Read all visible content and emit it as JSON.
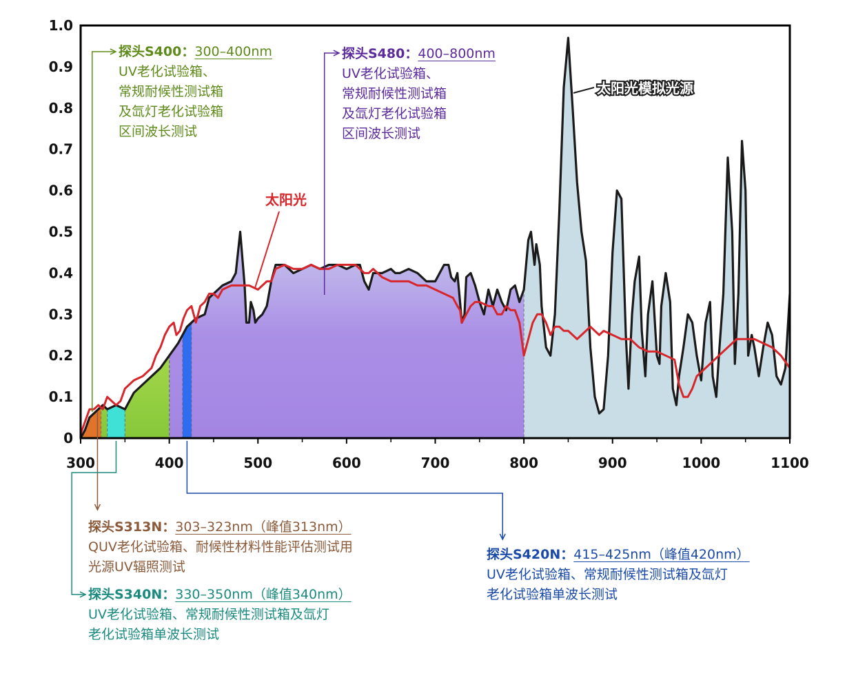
{
  "chart_data": {
    "type": "area",
    "x_range": [
      300,
      1100
    ],
    "y_range": [
      0,
      1.0
    ],
    "x_ticks": [
      "300",
      "400",
      "500",
      "600",
      "700",
      "800",
      "900",
      "1000",
      "1100"
    ],
    "y_ticks": [
      "0",
      "0.1",
      "0.2",
      "0.3",
      "0.4",
      "0.5",
      "0.6",
      "0.7",
      "0.8",
      "0.9",
      "1.0"
    ],
    "series": [
      {
        "name": "太阳光模拟光源",
        "color": "#1a1a1a",
        "fill": "#c9dde6",
        "points": [
          [
            300,
            0
          ],
          [
            305,
            0.02
          ],
          [
            310,
            0.05
          ],
          [
            315,
            0.06
          ],
          [
            320,
            0.07
          ],
          [
            325,
            0.08
          ],
          [
            330,
            0.07
          ],
          [
            340,
            0.08
          ],
          [
            350,
            0.07
          ],
          [
            360,
            0.11
          ],
          [
            370,
            0.13
          ],
          [
            380,
            0.15
          ],
          [
            390,
            0.17
          ],
          [
            400,
            0.2
          ],
          [
            410,
            0.23
          ],
          [
            420,
            0.27
          ],
          [
            430,
            0.29
          ],
          [
            440,
            0.3
          ],
          [
            445,
            0.34
          ],
          [
            450,
            0.35
          ],
          [
            460,
            0.37
          ],
          [
            470,
            0.38
          ],
          [
            475,
            0.4
          ],
          [
            480,
            0.5
          ],
          [
            485,
            0.37
          ],
          [
            487,
            0.28
          ],
          [
            490,
            0.28
          ],
          [
            492,
            0.33
          ],
          [
            495,
            0.31
          ],
          [
            497,
            0.28
          ],
          [
            500,
            0.29
          ],
          [
            505,
            0.3
          ],
          [
            510,
            0.32
          ],
          [
            515,
            0.38
          ],
          [
            520,
            0.42
          ],
          [
            530,
            0.42
          ],
          [
            540,
            0.4
          ],
          [
            550,
            0.41
          ],
          [
            560,
            0.42
          ],
          [
            570,
            0.41
          ],
          [
            580,
            0.42
          ],
          [
            590,
            0.42
          ],
          [
            600,
            0.41
          ],
          [
            610,
            0.42
          ],
          [
            615,
            0.42
          ],
          [
            620,
            0.38
          ],
          [
            625,
            0.36
          ],
          [
            630,
            0.4
          ],
          [
            640,
            0.4
          ],
          [
            650,
            0.41
          ],
          [
            655,
            0.4
          ],
          [
            660,
            0.4
          ],
          [
            670,
            0.41
          ],
          [
            680,
            0.4
          ],
          [
            690,
            0.38
          ],
          [
            700,
            0.38
          ],
          [
            705,
            0.4
          ],
          [
            710,
            0.42
          ],
          [
            715,
            0.42
          ],
          [
            718,
            0.39
          ],
          [
            722,
            0.38
          ],
          [
            725,
            0.4
          ],
          [
            728,
            0.33
          ],
          [
            730,
            0.28
          ],
          [
            733,
            0.3
          ],
          [
            735,
            0.39
          ],
          [
            740,
            0.4
          ],
          [
            745,
            0.37
          ],
          [
            750,
            0.33
          ],
          [
            755,
            0.3
          ],
          [
            760,
            0.36
          ],
          [
            765,
            0.32
          ],
          [
            770,
            0.36
          ],
          [
            775,
            0.33
          ],
          [
            780,
            0.31
          ],
          [
            785,
            0.36
          ],
          [
            790,
            0.37
          ],
          [
            795,
            0.33
          ],
          [
            800,
            0.36
          ],
          [
            805,
            0.48
          ],
          [
            808,
            0.5
          ],
          [
            812,
            0.42
          ],
          [
            814,
            0.47
          ],
          [
            818,
            0.42
          ],
          [
            820,
            0.32
          ],
          [
            825,
            0.22
          ],
          [
            830,
            0.2
          ],
          [
            835,
            0.3
          ],
          [
            840,
            0.55
          ],
          [
            845,
            0.85
          ],
          [
            850,
            0.97
          ],
          [
            855,
            0.8
          ],
          [
            860,
            0.62
          ],
          [
            865,
            0.5
          ],
          [
            870,
            0.43
          ],
          [
            875,
            0.22
          ],
          [
            880,
            0.1
          ],
          [
            885,
            0.06
          ],
          [
            890,
            0.07
          ],
          [
            895,
            0.2
          ],
          [
            900,
            0.45
          ],
          [
            905,
            0.6
          ],
          [
            910,
            0.58
          ],
          [
            915,
            0.25
          ],
          [
            918,
            0.12
          ],
          [
            922,
            0.3
          ],
          [
            925,
            0.38
          ],
          [
            930,
            0.44
          ],
          [
            933,
            0.26
          ],
          [
            937,
            0.15
          ],
          [
            940,
            0.3
          ],
          [
            945,
            0.38
          ],
          [
            950,
            0.2
          ],
          [
            953,
            0.18
          ],
          [
            955,
            0.32
          ],
          [
            960,
            0.4
          ],
          [
            965,
            0.33
          ],
          [
            968,
            0.12
          ],
          [
            972,
            0.08
          ],
          [
            975,
            0.15
          ],
          [
            980,
            0.22
          ],
          [
            985,
            0.3
          ],
          [
            990,
            0.28
          ],
          [
            995,
            0.2
          ],
          [
            1000,
            0.14
          ],
          [
            1005,
            0.28
          ],
          [
            1010,
            0.33
          ],
          [
            1013,
            0.15
          ],
          [
            1017,
            0.1
          ],
          [
            1020,
            0.2
          ],
          [
            1025,
            0.35
          ],
          [
            1030,
            0.68
          ],
          [
            1035,
            0.5
          ],
          [
            1038,
            0.18
          ],
          [
            1042,
            0.35
          ],
          [
            1046,
            0.72
          ],
          [
            1050,
            0.6
          ],
          [
            1053,
            0.2
          ],
          [
            1057,
            0.25
          ],
          [
            1060,
            0.22
          ],
          [
            1065,
            0.15
          ],
          [
            1070,
            0.22
          ],
          [
            1075,
            0.28
          ],
          [
            1080,
            0.25
          ],
          [
            1085,
            0.15
          ],
          [
            1090,
            0.13
          ],
          [
            1095,
            0.17
          ],
          [
            1100,
            0.35
          ]
        ]
      },
      {
        "name": "太阳光",
        "color": "#d7262b",
        "points": [
          [
            300,
            0.01
          ],
          [
            305,
            0.04
          ],
          [
            310,
            0.07
          ],
          [
            315,
            0.07
          ],
          [
            320,
            0.08
          ],
          [
            325,
            0.07
          ],
          [
            330,
            0.1
          ],
          [
            335,
            0.09
          ],
          [
            340,
            0.08
          ],
          [
            345,
            0.09
          ],
          [
            350,
            0.12
          ],
          [
            360,
            0.14
          ],
          [
            370,
            0.15
          ],
          [
            380,
            0.17
          ],
          [
            385,
            0.2
          ],
          [
            390,
            0.22
          ],
          [
            395,
            0.25
          ],
          [
            400,
            0.27
          ],
          [
            405,
            0.28
          ],
          [
            408,
            0.25
          ],
          [
            412,
            0.26
          ],
          [
            416,
            0.29
          ],
          [
            420,
            0.31
          ],
          [
            425,
            0.32
          ],
          [
            430,
            0.28
          ],
          [
            435,
            0.32
          ],
          [
            440,
            0.33
          ],
          [
            445,
            0.35
          ],
          [
            450,
            0.35
          ],
          [
            455,
            0.34
          ],
          [
            460,
            0.36
          ],
          [
            470,
            0.37
          ],
          [
            480,
            0.37
          ],
          [
            490,
            0.37
          ],
          [
            500,
            0.36
          ],
          [
            505,
            0.37
          ],
          [
            510,
            0.38
          ],
          [
            515,
            0.38
          ],
          [
            520,
            0.41
          ],
          [
            530,
            0.42
          ],
          [
            540,
            0.41
          ],
          [
            550,
            0.41
          ],
          [
            560,
            0.42
          ],
          [
            570,
            0.41
          ],
          [
            580,
            0.41
          ],
          [
            590,
            0.42
          ],
          [
            600,
            0.42
          ],
          [
            610,
            0.42
          ],
          [
            620,
            0.4
          ],
          [
            625,
            0.4
          ],
          [
            630,
            0.41
          ],
          [
            640,
            0.39
          ],
          [
            650,
            0.38
          ],
          [
            660,
            0.38
          ],
          [
            670,
            0.38
          ],
          [
            680,
            0.37
          ],
          [
            690,
            0.37
          ],
          [
            700,
            0.36
          ],
          [
            710,
            0.35
          ],
          [
            720,
            0.34
          ],
          [
            725,
            0.32
          ],
          [
            728,
            0.31
          ],
          [
            730,
            0.28
          ],
          [
            735,
            0.3
          ],
          [
            740,
            0.32
          ],
          [
            745,
            0.33
          ],
          [
            750,
            0.33
          ],
          [
            760,
            0.32
          ],
          [
            765,
            0.32
          ],
          [
            770,
            0.3
          ],
          [
            775,
            0.3
          ],
          [
            780,
            0.32
          ],
          [
            785,
            0.31
          ],
          [
            790,
            0.31
          ],
          [
            795,
            0.28
          ],
          [
            800,
            0.2
          ],
          [
            805,
            0.24
          ],
          [
            810,
            0.28
          ],
          [
            815,
            0.3
          ],
          [
            820,
            0.3
          ],
          [
            825,
            0.28
          ],
          [
            830,
            0.25
          ],
          [
            835,
            0.27
          ],
          [
            840,
            0.27
          ],
          [
            845,
            0.26
          ],
          [
            850,
            0.26
          ],
          [
            855,
            0.25
          ],
          [
            860,
            0.24
          ],
          [
            865,
            0.25
          ],
          [
            870,
            0.26
          ],
          [
            875,
            0.27
          ],
          [
            880,
            0.26
          ],
          [
            885,
            0.25
          ],
          [
            890,
            0.26
          ],
          [
            900,
            0.25
          ],
          [
            910,
            0.24
          ],
          [
            920,
            0.24
          ],
          [
            930,
            0.22
          ],
          [
            940,
            0.21
          ],
          [
            950,
            0.21
          ],
          [
            960,
            0.2
          ],
          [
            970,
            0.19
          ],
          [
            975,
            0.13
          ],
          [
            980,
            0.1
          ],
          [
            985,
            0.1
          ],
          [
            990,
            0.12
          ],
          [
            995,
            0.15
          ],
          [
            1000,
            0.16
          ],
          [
            1010,
            0.18
          ],
          [
            1020,
            0.2
          ],
          [
            1030,
            0.22
          ],
          [
            1040,
            0.24
          ],
          [
            1050,
            0.24
          ],
          [
            1060,
            0.24
          ],
          [
            1070,
            0.23
          ],
          [
            1080,
            0.22
          ],
          [
            1090,
            0.2
          ],
          [
            1100,
            0.17
          ]
        ]
      }
    ],
    "bands": [
      {
        "name": "S313N",
        "range": [
          303,
          323
        ],
        "color": "#e0742a"
      },
      {
        "name": "S340N",
        "range": [
          330,
          350
        ],
        "color": "#3fe0d6"
      },
      {
        "name": "S400",
        "range": [
          300,
          400
        ],
        "color": "#86c83a"
      },
      {
        "name": "S420N",
        "range": [
          415,
          425
        ],
        "color": "#2e6cf0"
      },
      {
        "name": "S480",
        "range": [
          400,
          800
        ],
        "color": "#a98be6"
      }
    ],
    "series_labels": {
      "sun": "太阳光",
      "sim": "太阳光模拟光源"
    }
  },
  "annotations": {
    "s400": {
      "head": "探头S400：",
      "range": "300–400nm",
      "lines": [
        "UV老化试验箱、",
        "常规耐候性测试箱",
        "及氙灯老化试验箱",
        "区间波长测试"
      ],
      "color": "#5e8a1a"
    },
    "s480": {
      "head": "探头S480：",
      "range": "400–800nm",
      "lines": [
        "UV老化试验箱、",
        "常规耐候性测试箱",
        "及氙灯老化试验箱",
        "区间波长测试"
      ],
      "color": "#5b2a9c"
    },
    "s313": {
      "head": "探头S313N：",
      "range": "303–323nm（峰值313nm）",
      "lines": [
        "QUV老化试验箱、耐候性材料性能评估测试用",
        "光源UV辐照测试"
      ],
      "color": "#8a5a3a"
    },
    "s340": {
      "head": "探头S340N：",
      "range": "330–350nm（峰值340nm）",
      "lines": [
        "UV老化试验箱、常规耐候性测试箱及氙灯",
        "老化试验箱单波长测试"
      ],
      "color": "#1a8a7e"
    },
    "s420": {
      "head": "探头S420N：",
      "range": "415–425nm（峰值420nm）",
      "lines": [
        "UV老化试验箱、常规耐候性测试箱及氙灯",
        "老化试验箱单波长测试"
      ],
      "color": "#1a4aa8"
    }
  }
}
